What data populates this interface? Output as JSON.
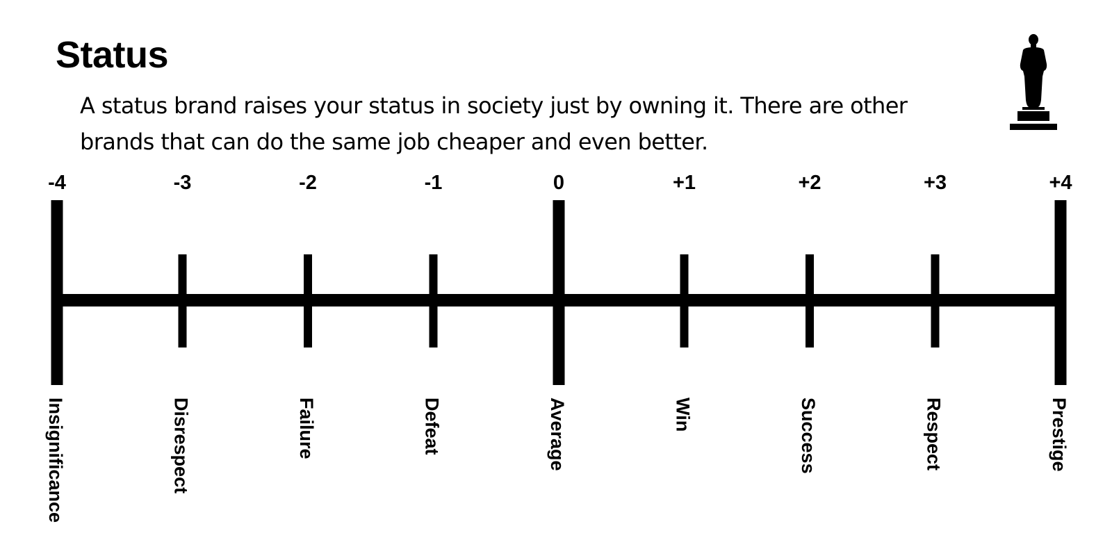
{
  "title": "Status",
  "description": "A status brand raises your status in society just by owning it. There are other brands that can do the same job cheaper and even better.",
  "icon": "trophy-statuette-icon",
  "colors": {
    "ink": "#000000",
    "background": "#ffffff"
  },
  "scale": {
    "min": -4,
    "max": 4,
    "points": [
      {
        "value": -4,
        "label": "-4",
        "word": "Insignificance",
        "major": true
      },
      {
        "value": -3,
        "label": "-3",
        "word": "Disrespect",
        "major": false
      },
      {
        "value": -2,
        "label": "-2",
        "word": "Failure",
        "major": false
      },
      {
        "value": -1,
        "label": "-1",
        "word": "Defeat",
        "major": false
      },
      {
        "value": 0,
        "label": "0",
        "word": "Average",
        "major": true
      },
      {
        "value": 1,
        "label": "+1",
        "word": "Win",
        "major": false
      },
      {
        "value": 2,
        "label": "+2",
        "word": "Success",
        "major": false
      },
      {
        "value": 3,
        "label": "+3",
        "word": "Respect",
        "major": false
      },
      {
        "value": 4,
        "label": "+4",
        "word": "Prestige",
        "major": true
      }
    ]
  }
}
